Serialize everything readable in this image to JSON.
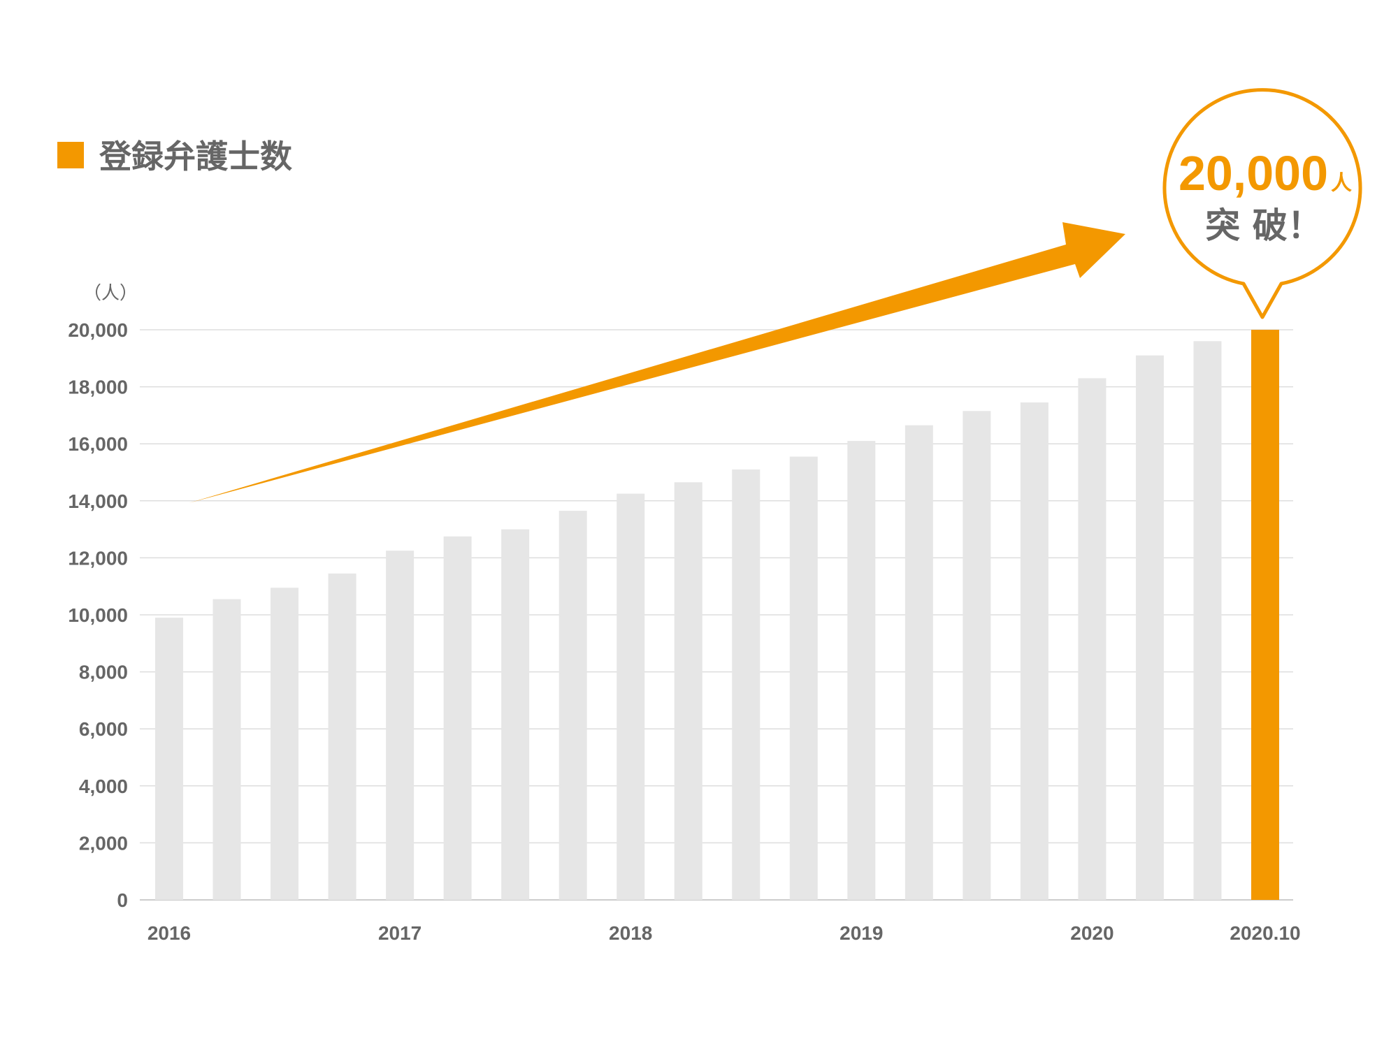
{
  "legend": {
    "label": "登録弁護士数"
  },
  "callout": {
    "value": "20,000",
    "unit": "人",
    "text": "突 破！"
  },
  "colors": {
    "accent": "#f39800",
    "bar": "#e6e6e6",
    "grid": "#dddddd",
    "text": "#666666"
  },
  "chart_data": {
    "type": "bar",
    "title": "",
    "ylabel": "（人）",
    "xlabel": "",
    "ylim": [
      0,
      20000
    ],
    "yticks": [
      "0",
      "2,000",
      "4,000",
      "6,000",
      "8,000",
      "10,000",
      "12,000",
      "14,000",
      "16,000",
      "18,000",
      "20,000"
    ],
    "xtick_labels": [
      {
        "label": "2016",
        "bar_index": 0
      },
      {
        "label": "2017",
        "bar_index": 4
      },
      {
        "label": "2018",
        "bar_index": 8
      },
      {
        "label": "2019",
        "bar_index": 12
      },
      {
        "label": "2020",
        "bar_index": 16
      },
      {
        "label": "2020.10",
        "bar_index": 19
      }
    ],
    "values": [
      9900,
      10550,
      10950,
      11450,
      12250,
      12750,
      13000,
      13650,
      14250,
      14650,
      15100,
      15550,
      16100,
      16650,
      17150,
      17450,
      18300,
      19100,
      19600,
      20000
    ],
    "highlight_index": 19,
    "grid": true,
    "legend_position": "top-left"
  }
}
